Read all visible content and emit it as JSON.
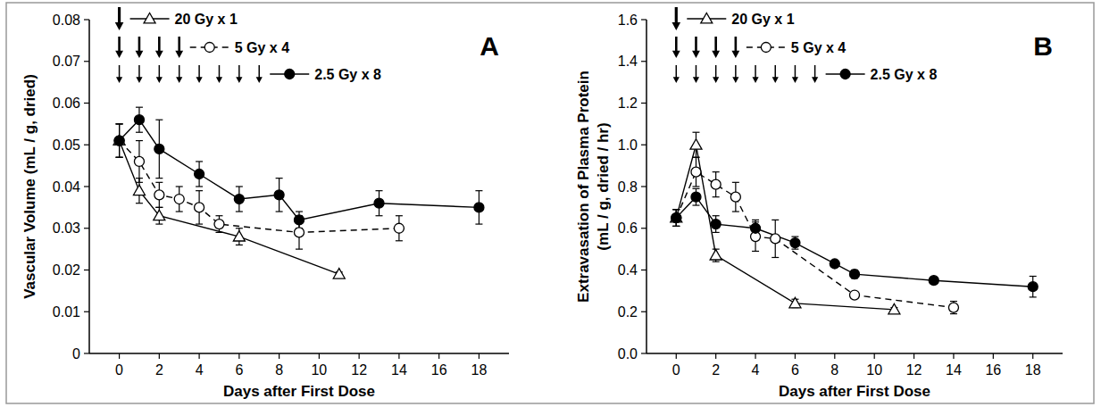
{
  "chart_data": [
    {
      "type": "line",
      "title": "A",
      "x_label": "Days after First Dose",
      "y_label": "Vascular Volume (mL / g, dried)",
      "xlim": [
        -1.5,
        19.5
      ],
      "xticks": [
        0,
        2,
        4,
        6,
        8,
        10,
        12,
        14,
        16,
        18
      ],
      "ylim": [
        0,
        0.08
      ],
      "yticks": [
        0,
        0.01,
        0.02,
        0.03,
        0.04,
        0.05,
        0.06,
        0.07,
        0.08
      ],
      "legend": "upper left",
      "series": [
        {
          "name": "20 Gy x 1",
          "color": "#000000",
          "marker": "triangle-open",
          "line_style": "solid",
          "x": [
            0,
            1,
            2,
            6,
            11
          ],
          "values": [
            0.051,
            0.039,
            0.033,
            0.028,
            0.019
          ],
          "errors": [
            0.004,
            0.003,
            0.002,
            0.002,
            0.0005
          ],
          "doses": [
            0
          ]
        },
        {
          "name": "5 Gy x 4",
          "color": "#000000",
          "marker": "circle-open",
          "line_style": "dashed",
          "x": [
            0,
            1,
            2,
            3,
            4,
            5,
            9,
            14
          ],
          "values": [
            0.051,
            0.046,
            0.038,
            0.037,
            0.035,
            0.031,
            0.029,
            0.03
          ],
          "errors": [
            0.004,
            0.005,
            0.003,
            0.003,
            0.004,
            0.002,
            0.004,
            0.003
          ],
          "doses": [
            0,
            1,
            2,
            3
          ]
        },
        {
          "name": "2.5 Gy x 8",
          "color": "#000000",
          "marker": "circle-filled",
          "line_style": "solid",
          "x": [
            0,
            1,
            2,
            4,
            6,
            8,
            9,
            13,
            18
          ],
          "values": [
            0.051,
            0.056,
            0.049,
            0.043,
            0.037,
            0.038,
            0.032,
            0.036,
            0.035
          ],
          "errors": [
            0.004,
            0.003,
            0.007,
            0.003,
            0.003,
            0.004,
            0.002,
            0.003,
            0.004
          ],
          "doses": [
            0,
            1,
            2,
            3,
            4,
            5,
            6,
            7
          ]
        }
      ]
    },
    {
      "type": "line",
      "title": "B",
      "x_label": "Days after First Dose",
      "y_label": "Extravasation of Plasma Protein\n(mL / g, dried / hr)",
      "xlim": [
        -1.5,
        19.5
      ],
      "xticks": [
        0,
        2,
        4,
        6,
        8,
        10,
        12,
        14,
        16,
        18
      ],
      "ylim": [
        0,
        1.6
      ],
      "yticks": [
        {
          "value": 0,
          "label": "0.0"
        },
        0.2,
        0.4,
        0.6,
        0.8,
        {
          "value": 1,
          "label": "1.0"
        },
        1.2,
        1.4,
        1.6
      ],
      "legend": "upper left",
      "series": [
        {
          "name": "20 Gy x 1",
          "color": "#000000",
          "marker": "triangle-open",
          "line_style": "solid",
          "x": [
            0,
            1,
            2,
            6,
            11
          ],
          "values": [
            0.65,
            1.0,
            0.47,
            0.24,
            0.21
          ],
          "errors": [
            0.04,
            0.06,
            0.03,
            0.02,
            0.01
          ],
          "doses": [
            0
          ]
        },
        {
          "name": "5 Gy x 4",
          "color": "#000000",
          "marker": "circle-open",
          "line_style": "dashed",
          "x": [
            0,
            1,
            2,
            3,
            4,
            5,
            9,
            14
          ],
          "values": [
            0.65,
            0.87,
            0.81,
            0.75,
            0.56,
            0.55,
            0.28,
            0.22
          ],
          "errors": [
            0.04,
            0.07,
            0.06,
            0.07,
            0.07,
            0.09,
            0.01,
            0.03
          ],
          "doses": [
            0,
            1,
            2,
            3
          ]
        },
        {
          "name": "2.5 Gy x 8",
          "color": "#000000",
          "marker": "circle-filled",
          "line_style": "solid",
          "x": [
            0,
            1,
            2,
            4,
            6,
            8,
            9,
            13,
            18
          ],
          "values": [
            0.65,
            0.75,
            0.62,
            0.6,
            0.53,
            0.43,
            0.38,
            0.35,
            0.32
          ],
          "errors": [
            0.04,
            0.04,
            0.04,
            0.04,
            0.03,
            0.015,
            0.02,
            0.015,
            0.05
          ],
          "doses": [
            0,
            1,
            2,
            3,
            4,
            5,
            6,
            7
          ]
        }
      ]
    }
  ]
}
